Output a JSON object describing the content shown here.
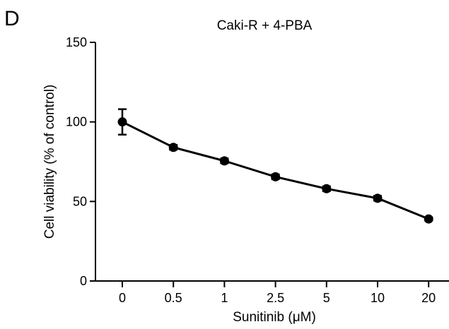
{
  "panel_label": "D",
  "chart_data": {
    "type": "line",
    "title": "Caki-R + 4-PBA",
    "xlabel": "Sunitinib (μM)",
    "ylabel": "Cell viability (% of control)",
    "categories": [
      "0",
      "0.5",
      "1",
      "2.5",
      "5",
      "10",
      "20"
    ],
    "series": [
      {
        "values": [
          100,
          84,
          75.5,
          65.5,
          58,
          52,
          39
        ],
        "error": [
          8,
          1.5,
          1.5,
          1.5,
          1.5,
          1.5,
          1
        ]
      }
    ],
    "ylim": [
      0,
      150
    ],
    "yticks": [
      0,
      50,
      100,
      150
    ],
    "grid": false,
    "legend": "none",
    "colors": {
      "line": "#000000",
      "marker": "#000000"
    }
  }
}
